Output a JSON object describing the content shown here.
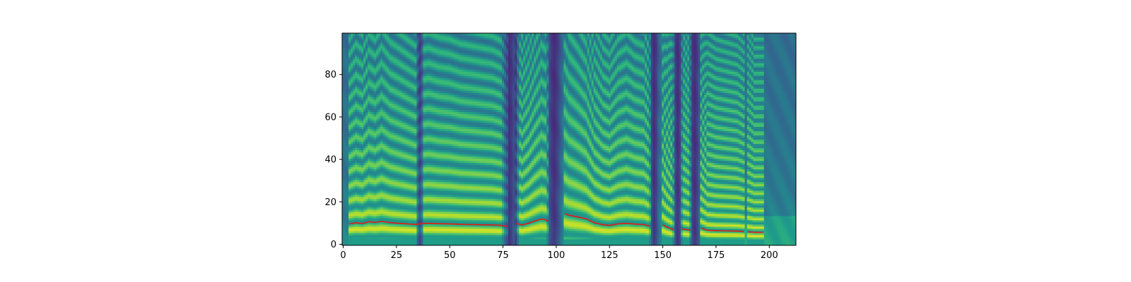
{
  "chart_data": {
    "type": "heatmap",
    "title": "",
    "xlabel": "",
    "ylabel": "",
    "xlim": [
      -0.5,
      212.5
    ],
    "ylim": [
      -0.5,
      99.5
    ],
    "colormap": "viridis",
    "grid": false,
    "x_ticks": [
      0,
      25,
      50,
      75,
      100,
      125,
      150,
      175,
      200
    ],
    "y_ticks": [
      0,
      20,
      40,
      60,
      80
    ],
    "pitch_line_color": "#e8190e",
    "pitch_segments": [
      [
        [
          3,
          9.6
        ],
        [
          6,
          10.1
        ],
        [
          9,
          9.8
        ],
        [
          12,
          10.6
        ],
        [
          15,
          10.3
        ],
        [
          18,
          10.8
        ],
        [
          22,
          10.2
        ],
        [
          26,
          9.9
        ],
        [
          30,
          9.6
        ],
        [
          34,
          9.3
        ],
        [
          37,
          9.8
        ],
        [
          40,
          9.9
        ],
        [
          45,
          9.7
        ],
        [
          50,
          9.6
        ],
        [
          55,
          9.4
        ],
        [
          60,
          9.3
        ],
        [
          65,
          9.2
        ],
        [
          70,
          9.1
        ],
        [
          74,
          8.9
        ],
        [
          77,
          8.4
        ]
      ],
      [
        [
          81,
          9.8
        ],
        [
          84,
          9.1
        ],
        [
          87,
          9.9
        ],
        [
          90,
          11.0
        ],
        [
          93,
          11.9
        ],
        [
          95,
          11.6
        ],
        [
          96,
          10.8
        ]
      ],
      [
        [
          104,
          14.5
        ],
        [
          106,
          13.7
        ],
        [
          110,
          12.9
        ],
        [
          114,
          12.0
        ],
        [
          118,
          10.1
        ],
        [
          122,
          9.2
        ],
        [
          125,
          8.9
        ],
        [
          129,
          9.6
        ],
        [
          133,
          9.9
        ],
        [
          137,
          9.5
        ],
        [
          141,
          9.3
        ],
        [
          144,
          8.5
        ]
      ],
      [
        [
          150,
          9.2
        ],
        [
          152,
          8.1
        ],
        [
          155,
          6.9
        ]
      ],
      [
        [
          159,
          7.3
        ],
        [
          163,
          6.6
        ]
      ],
      [
        [
          168,
          7.6
        ],
        [
          171,
          6.6
        ],
        [
          175,
          6.4
        ],
        [
          180,
          6.3
        ],
        [
          185,
          6.2
        ],
        [
          188,
          6.0
        ]
      ],
      [
        [
          190,
          5.9
        ],
        [
          193,
          5.6
        ],
        [
          197,
          5.6
        ]
      ]
    ]
  }
}
